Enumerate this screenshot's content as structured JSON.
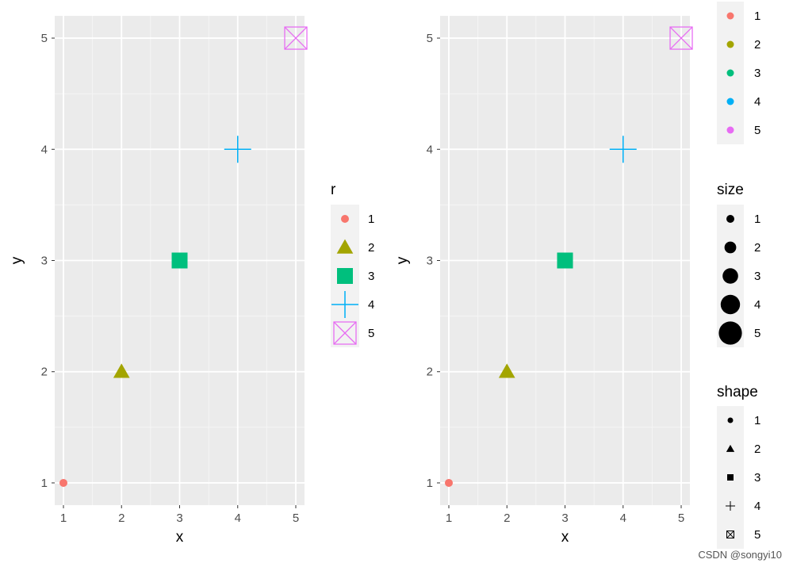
{
  "chart_data": [
    {
      "type": "scatter",
      "xlabel": "x",
      "ylabel": "y",
      "xlim": [
        0.85,
        5.15
      ],
      "ylim": [
        0.8,
        5.2
      ],
      "xticks": [
        "1",
        "2",
        "3",
        "4",
        "5"
      ],
      "yticks": [
        "1",
        "2",
        "3",
        "4",
        "5"
      ],
      "grid": true,
      "points": [
        {
          "x": 1,
          "y": 1,
          "r": "1",
          "color": "#F8766D",
          "shape": "circle",
          "size": 1
        },
        {
          "x": 2,
          "y": 2,
          "r": "2",
          "color": "#A3A500",
          "shape": "triangle",
          "size": 2
        },
        {
          "x": 3,
          "y": 3,
          "r": "3",
          "color": "#00BF7D",
          "shape": "square",
          "size": 3
        },
        {
          "x": 4,
          "y": 4,
          "r": "4",
          "color": "#00B0F6",
          "shape": "plus",
          "size": 4
        },
        {
          "x": 5,
          "y": 5,
          "r": "5",
          "color": "#E76BF3",
          "shape": "square-x",
          "size": 5
        }
      ],
      "legend": {
        "placement": "right",
        "title": "r",
        "entries": [
          {
            "label": "1",
            "color": "#F8766D",
            "shape": "circle",
            "size": 1
          },
          {
            "label": "2",
            "color": "#A3A500",
            "shape": "triangle",
            "size": 2
          },
          {
            "label": "3",
            "color": "#00BF7D",
            "shape": "square",
            "size": 3
          },
          {
            "label": "4",
            "color": "#00B0F6",
            "shape": "plus",
            "size": 4
          },
          {
            "label": "5",
            "color": "#E76BF3",
            "shape": "square-x",
            "size": 5
          }
        ]
      }
    },
    {
      "type": "scatter",
      "xlabel": "x",
      "ylabel": "y",
      "xlim": [
        0.85,
        5.15
      ],
      "ylim": [
        0.8,
        5.2
      ],
      "xticks": [
        "1",
        "2",
        "3",
        "4",
        "5"
      ],
      "yticks": [
        "1",
        "2",
        "3",
        "4",
        "5"
      ],
      "grid": true,
      "points": [
        {
          "x": 1,
          "y": 1,
          "color": "#F8766D",
          "shape": "circle",
          "size": 1
        },
        {
          "x": 2,
          "y": 2,
          "color": "#A3A500",
          "shape": "triangle",
          "size": 2
        },
        {
          "x": 3,
          "y": 3,
          "color": "#00BF7D",
          "shape": "square",
          "size": 3
        },
        {
          "x": 4,
          "y": 4,
          "color": "#00B0F6",
          "shape": "plus",
          "size": 4
        },
        {
          "x": 5,
          "y": 5,
          "color": "#E76BF3",
          "shape": "square-x",
          "size": 5
        }
      ],
      "legends": [
        {
          "placement": "right-top",
          "title": "",
          "kind": "color",
          "entries": [
            {
              "label": "1",
              "color": "#F8766D"
            },
            {
              "label": "2",
              "color": "#A3A500"
            },
            {
              "label": "3",
              "color": "#00BF7D"
            },
            {
              "label": "4",
              "color": "#00B0F6"
            },
            {
              "label": "5",
              "color": "#E76BF3"
            }
          ]
        },
        {
          "placement": "right-middle",
          "title": "size",
          "kind": "size",
          "entries": [
            {
              "label": "1",
              "size": 1
            },
            {
              "label": "2",
              "size": 2
            },
            {
              "label": "3",
              "size": 3
            },
            {
              "label": "4",
              "size": 4
            },
            {
              "label": "5",
              "size": 5
            }
          ]
        },
        {
          "placement": "right-bottom",
          "title": "shape",
          "kind": "shape",
          "entries": [
            {
              "label": "1",
              "shape": "circle"
            },
            {
              "label": "2",
              "shape": "triangle"
            },
            {
              "label": "3",
              "shape": "square"
            },
            {
              "label": "4",
              "shape": "plus"
            },
            {
              "label": "5",
              "shape": "square-x"
            }
          ]
        }
      ]
    }
  ],
  "watermark": "CSDN @songyi10"
}
